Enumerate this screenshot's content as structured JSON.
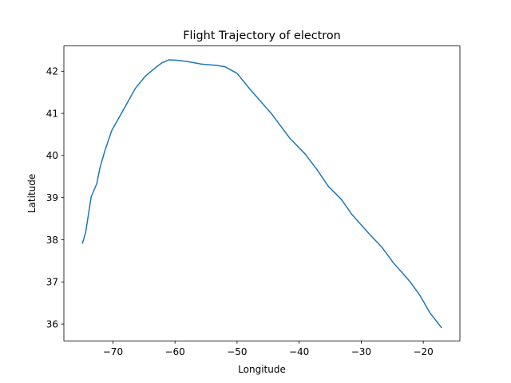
{
  "chart_data": {
    "type": "line",
    "title": "Flight Trajectory of electron",
    "xlabel": "Longitude",
    "ylabel": "Latitude",
    "xlim": [
      -77.9,
      -14.1
    ],
    "ylim": [
      35.6,
      42.6
    ],
    "xticks": [
      -70,
      -60,
      -50,
      -40,
      -30,
      -20
    ],
    "xtick_labels": [
      "−70",
      "−60",
      "−50",
      "−40",
      "−30",
      "−20"
    ],
    "yticks": [
      36,
      37,
      38,
      39,
      40,
      41,
      42
    ],
    "ytick_labels": [
      "36",
      "37",
      "38",
      "39",
      "40",
      "41",
      "42"
    ],
    "grid": false,
    "line_color": "#1f77b4",
    "series": [
      {
        "name": "electron",
        "x": [
          -74.9,
          -74.4,
          -73.5,
          -72.6,
          -72.1,
          -71.3,
          -70.2,
          -68.4,
          -66.4,
          -64.8,
          -63.1,
          -62.1,
          -61.0,
          -59.7,
          -58.0,
          -55.8,
          -53.4,
          -52.0,
          -50.0,
          -47.9,
          -44.5,
          -41.5,
          -39.0,
          -37.1,
          -35.3,
          -33.2,
          -31.5,
          -28.9,
          -26.6,
          -24.8,
          -22.1,
          -20.5,
          -18.9,
          -17.1
        ],
        "y": [
          37.92,
          38.17,
          39.02,
          39.33,
          39.7,
          40.11,
          40.59,
          41.06,
          41.59,
          41.88,
          42.09,
          42.2,
          42.27,
          42.26,
          42.23,
          42.17,
          42.14,
          42.11,
          41.95,
          41.57,
          41.0,
          40.41,
          40.03,
          39.66,
          39.27,
          38.96,
          38.6,
          38.17,
          37.81,
          37.45,
          37.0,
          36.67,
          36.26,
          35.92
        ]
      }
    ]
  }
}
